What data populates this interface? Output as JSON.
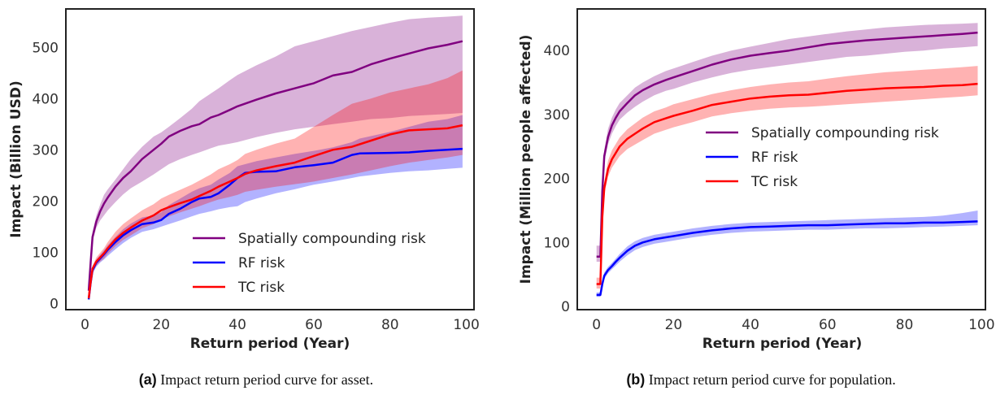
{
  "chart_data": [
    {
      "type": "line",
      "caption_tag": "(a)",
      "caption_text": "Impact return period curve for asset.",
      "xlabel": "Return period (Year)",
      "ylabel": "Impact (Billion USD)",
      "xlim": [
        -5,
        102
      ],
      "ylim": [
        -12,
        575
      ],
      "xticks": [
        0,
        20,
        40,
        60,
        80,
        100
      ],
      "yticks": [
        0,
        100,
        200,
        300,
        400,
        500
      ],
      "grid": false,
      "legend_position": "lower-right",
      "series": [
        {
          "name": "Spatially compounding risk",
          "color": "#800080",
          "x": [
            1,
            1.5,
            2,
            3,
            4,
            5,
            6,
            8,
            10,
            12,
            15,
            18,
            20,
            22,
            25,
            28,
            30,
            33,
            35,
            38,
            40,
            45,
            50,
            55,
            60,
            65,
            70,
            75,
            80,
            85,
            90,
            95,
            99
          ],
          "y": [
            25,
            80,
            130,
            160,
            180,
            195,
            207,
            228,
            245,
            258,
            282,
            300,
            312,
            326,
            337,
            346,
            350,
            363,
            368,
            378,
            385,
            398,
            410,
            420,
            430,
            445,
            452,
            467,
            478,
            488,
            498,
            505,
            512
          ],
          "lower": [
            22,
            70,
            120,
            148,
            162,
            172,
            182,
            198,
            213,
            225,
            238,
            252,
            262,
            272,
            282,
            290,
            295,
            303,
            308,
            312,
            315,
            325,
            333,
            340,
            345,
            350,
            355,
            360,
            362,
            366,
            368,
            370,
            372
          ],
          "upper": [
            32,
            90,
            140,
            172,
            193,
            212,
            223,
            242,
            262,
            282,
            306,
            326,
            334,
            345,
            362,
            380,
            395,
            410,
            420,
            436,
            446,
            465,
            482,
            502,
            512,
            522,
            532,
            540,
            548,
            555,
            558,
            560,
            562
          ]
        },
        {
          "name": "RF risk",
          "color": "#0000ff",
          "x": [
            1,
            1.5,
            2,
            3,
            4,
            5,
            6,
            8,
            10,
            12,
            15,
            18,
            20,
            22,
            25,
            28,
            30,
            33,
            35,
            38,
            40,
            42,
            45,
            50,
            55,
            60,
            65,
            70,
            72,
            80,
            85,
            90,
            95,
            99
          ],
          "y": [
            8,
            40,
            65,
            80,
            88,
            96,
            105,
            120,
            133,
            143,
            155,
            158,
            163,
            175,
            185,
            198,
            205,
            208,
            215,
            232,
            245,
            255,
            257,
            258,
            266,
            270,
            275,
            290,
            293,
            294,
            295,
            298,
            300,
            302
          ],
          "lower": [
            5,
            35,
            58,
            72,
            80,
            86,
            93,
            106,
            118,
            128,
            140,
            145,
            150,
            155,
            162,
            170,
            175,
            180,
            184,
            188,
            190,
            198,
            205,
            215,
            223,
            232,
            238,
            245,
            248,
            255,
            258,
            260,
            263,
            265
          ],
          "upper": [
            12,
            45,
            70,
            86,
            95,
            104,
            114,
            130,
            145,
            156,
            168,
            172,
            178,
            192,
            205,
            218,
            225,
            232,
            242,
            255,
            268,
            272,
            278,
            285,
            292,
            298,
            305,
            315,
            322,
            335,
            345,
            355,
            360,
            368
          ]
        },
        {
          "name": "TC risk",
          "color": "#ff0000",
          "x": [
            1,
            1.5,
            2,
            3,
            4,
            5,
            6,
            8,
            10,
            12,
            15,
            18,
            20,
            22,
            25,
            28,
            30,
            33,
            35,
            38,
            40,
            42,
            45,
            50,
            55,
            60,
            65,
            70,
            75,
            80,
            85,
            90,
            95,
            99
          ],
          "y": [
            10,
            42,
            68,
            82,
            90,
            98,
            108,
            125,
            138,
            148,
            162,
            172,
            182,
            188,
            196,
            203,
            210,
            220,
            228,
            238,
            245,
            253,
            260,
            268,
            275,
            288,
            300,
            306,
            318,
            330,
            338,
            340,
            342,
            348
          ],
          "lower": [
            6,
            36,
            60,
            74,
            82,
            88,
            97,
            112,
            124,
            133,
            147,
            155,
            165,
            170,
            178,
            185,
            190,
            198,
            203,
            208,
            212,
            218,
            222,
            228,
            233,
            238,
            245,
            252,
            260,
            268,
            275,
            280,
            285,
            290
          ],
          "upper": [
            15,
            48,
            74,
            90,
            99,
            108,
            120,
            140,
            155,
            166,
            182,
            194,
            205,
            212,
            222,
            232,
            240,
            252,
            262,
            272,
            280,
            292,
            300,
            312,
            322,
            345,
            368,
            390,
            400,
            412,
            420,
            428,
            440,
            455
          ]
        }
      ]
    },
    {
      "type": "line",
      "caption_tag": "(b)",
      "caption_text": "Impact return period curve for population.",
      "xlabel": "Return period (Year)",
      "ylabel": "Impact (Million people affected)",
      "xlim": [
        -5,
        101
      ],
      "ylim": [
        -5,
        465
      ],
      "xticks": [
        0,
        20,
        40,
        60,
        80,
        100
      ],
      "yticks": [
        0,
        100,
        200,
        300,
        400
      ],
      "grid": false,
      "legend_position": "center-right",
      "series": [
        {
          "name": "Spatially compounding risk",
          "color": "#800080",
          "x": [
            0,
            1,
            1.5,
            2,
            3,
            4,
            5,
            6,
            8,
            10,
            12,
            15,
            18,
            20,
            25,
            30,
            35,
            40,
            45,
            50,
            55,
            60,
            65,
            70,
            75,
            80,
            85,
            90,
            95,
            99
          ],
          "y": [
            78,
            78,
            180,
            235,
            265,
            283,
            295,
            305,
            318,
            330,
            338,
            347,
            354,
            358,
            368,
            378,
            386,
            392,
            396,
            400,
            405,
            410,
            413,
            416,
            418,
            420,
            422,
            424,
            426,
            428
          ],
          "lower": [
            70,
            70,
            170,
            225,
            254,
            270,
            282,
            292,
            303,
            312,
            320,
            330,
            337,
            340,
            350,
            358,
            365,
            370,
            374,
            378,
            382,
            386,
            390,
            392,
            395,
            398,
            400,
            403,
            405,
            407
          ],
          "upper": [
            95,
            95,
            190,
            245,
            278,
            295,
            308,
            318,
            330,
            342,
            350,
            360,
            368,
            372,
            382,
            392,
            400,
            406,
            412,
            418,
            422,
            426,
            430,
            433,
            436,
            438,
            440,
            441,
            442,
            443
          ]
        },
        {
          "name": "RF risk",
          "color": "#0000ff",
          "x": [
            0,
            1,
            1.5,
            2,
            3,
            4,
            5,
            6,
            8,
            10,
            12,
            15,
            18,
            20,
            25,
            30,
            35,
            40,
            45,
            50,
            55,
            60,
            65,
            70,
            75,
            80,
            85,
            90,
            95,
            99
          ],
          "y": [
            18,
            18,
            35,
            48,
            57,
            63,
            70,
            76,
            87,
            95,
            100,
            105,
            108,
            110,
            115,
            119,
            122,
            124,
            125,
            126,
            127,
            127,
            128,
            129,
            130,
            130,
            131,
            131,
            132,
            133
          ],
          "lower": [
            15,
            15,
            30,
            43,
            52,
            58,
            64,
            70,
            80,
            88,
            93,
            98,
            101,
            103,
            108,
            112,
            115,
            117,
            118,
            119,
            120,
            120,
            121,
            122,
            122,
            123,
            124,
            125,
            126,
            127
          ],
          "upper": [
            22,
            22,
            40,
            53,
            62,
            68,
            75,
            82,
            94,
            102,
            107,
            112,
            115,
            117,
            122,
            126,
            129,
            131,
            132,
            133,
            134,
            135,
            136,
            137,
            138,
            139,
            140,
            142,
            146,
            150
          ]
        },
        {
          "name": "TC risk",
          "color": "#ff0000",
          "x": [
            0,
            1,
            1.5,
            2,
            3,
            4,
            5,
            6,
            8,
            10,
            12,
            15,
            18,
            20,
            25,
            30,
            35,
            40,
            45,
            50,
            55,
            60,
            65,
            70,
            75,
            80,
            85,
            90,
            95,
            99
          ],
          "y": [
            35,
            35,
            140,
            185,
            215,
            230,
            240,
            250,
            262,
            270,
            278,
            288,
            294,
            298,
            306,
            315,
            320,
            325,
            328,
            330,
            331,
            334,
            337,
            339,
            341,
            342,
            343,
            345,
            346,
            348
          ],
          "lower": [
            28,
            28,
            130,
            175,
            203,
            217,
            226,
            235,
            246,
            253,
            260,
            270,
            276,
            280,
            288,
            297,
            302,
            306,
            309,
            311,
            312,
            314,
            316,
            318,
            320,
            322,
            324,
            326,
            328,
            330
          ],
          "upper": [
            45,
            45,
            150,
            195,
            228,
            244,
            254,
            264,
            277,
            286,
            295,
            305,
            311,
            316,
            324,
            332,
            338,
            343,
            347,
            350,
            352,
            356,
            360,
            363,
            366,
            368,
            370,
            372,
            374,
            376
          ]
        }
      ]
    }
  ]
}
